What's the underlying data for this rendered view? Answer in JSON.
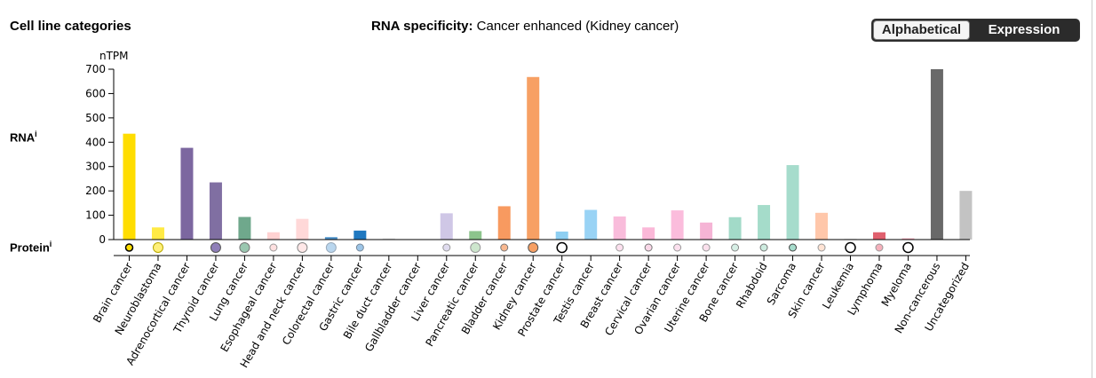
{
  "header": {
    "left_title": "Cell line categories",
    "center_title_bold": "RNA specificity:",
    "center_title_value": "Cancer enhanced (Kidney cancer)"
  },
  "sort_toggle": {
    "alphabetical_label": "Alphabetical",
    "expression_label": "Expression",
    "selected": "Alphabetical"
  },
  "rows": {
    "rna_label": "RNA",
    "rna_info": "i",
    "protein_label": "Protein",
    "protein_info": "i"
  },
  "chart_data": {
    "type": "bar",
    "ylabel": "nTPM",
    "ylim": [
      0,
      700
    ],
    "yticks": [
      0,
      100,
      200,
      300,
      400,
      500,
      600,
      700
    ],
    "categories": [
      "Brain cancer",
      "Neuroblastoma",
      "Adrenocortical cancer",
      "Thyroid cancer",
      "Lung cancer",
      "Esophageal cancer",
      "Head and neck cancer",
      "Colorectal cancer",
      "Gastric cancer",
      "Bile duct cancer",
      "Gallbladder cancer",
      "Liver cancer",
      "Pancreatic cancer",
      "Bladder cancer",
      "Kidney cancer",
      "Prostate cancer",
      "Testis cancer",
      "Breast cancer",
      "Cervical cancer",
      "Ovarian cancer",
      "Uterine cancer",
      "Bone cancer",
      "Rhabdoid",
      "Sarcoma",
      "Skin cancer",
      "Leukemia",
      "Lymphoma",
      "Myeloma",
      "Non-cancerous",
      "Uncategorized"
    ],
    "values": [
      435,
      50,
      377,
      235,
      93,
      30,
      85,
      10,
      37,
      5,
      0,
      108,
      35,
      137,
      668,
      33,
      122,
      95,
      50,
      120,
      70,
      92,
      142,
      306,
      110,
      3,
      30,
      5,
      700,
      200
    ],
    "colors": [
      "#FFDD00",
      "#FFEA44",
      "#7C67A0",
      "#806FA2",
      "#6FA88C",
      "#FFD2D2",
      "#FFD8D8",
      "#4A90C8",
      "#1F78C0",
      "#E5E5E5",
      "#FFFFFF",
      "#CFC7E6",
      "#8CC48C",
      "#F89A60",
      "#F7A064",
      "#8ECFF2",
      "#99D3F5",
      "#F9BCDB",
      "#FBB8D8",
      "#FBBCDC",
      "#F5B4D5",
      "#A2DAC8",
      "#A5DCCA",
      "#A6DCCC",
      "#FFC7AA",
      "#D9D9D9",
      "#E0606E",
      "#F2A0B0",
      "#696969",
      "#C3C3C3"
    ],
    "protein": [
      {
        "size": "small",
        "fill": "#FFDD00",
        "stroke": "#000"
      },
      {
        "size": "large",
        "fill": "#FFF07A",
        "stroke": "#B8A800"
      },
      null,
      {
        "size": "large",
        "fill": "#8F7FB8",
        "stroke": "#555"
      },
      {
        "size": "large",
        "fill": "#9AC7B0",
        "stroke": "#777"
      },
      {
        "size": "small",
        "fill": "#FFE0E0",
        "stroke": "#999"
      },
      {
        "size": "large",
        "fill": "#FFE8E8",
        "stroke": "#888"
      },
      {
        "size": "large",
        "fill": "#B9D6EE",
        "stroke": "#9AB"
      },
      {
        "size": "small",
        "fill": "#9CC4E6",
        "stroke": "#789"
      },
      null,
      null,
      {
        "size": "small",
        "fill": "#E0DCEF",
        "stroke": "#999"
      },
      {
        "size": "large",
        "fill": "#CDE6CD",
        "stroke": "#999"
      },
      {
        "size": "small",
        "fill": "#F8B890",
        "stroke": "#777"
      },
      {
        "size": "large",
        "fill": "#F7A064",
        "stroke": "#555"
      },
      {
        "size": "large",
        "fill": "#FFFFFF",
        "stroke": "#000"
      },
      null,
      {
        "size": "small",
        "fill": "#FCE0EE",
        "stroke": "#999"
      },
      {
        "size": "small",
        "fill": "#FAD8E8",
        "stroke": "#777"
      },
      {
        "size": "small",
        "fill": "#FCE0EE",
        "stroke": "#999"
      },
      {
        "size": "small",
        "fill": "#FAE0EC",
        "stroke": "#999"
      },
      {
        "size": "small",
        "fill": "#D6EEE5",
        "stroke": "#888"
      },
      {
        "size": "small",
        "fill": "#CDEBDF",
        "stroke": "#777"
      },
      {
        "size": "small",
        "fill": "#A6DCCC",
        "stroke": "#444"
      },
      {
        "size": "small",
        "fill": "#FFE3D4",
        "stroke": "#999"
      },
      {
        "size": "large",
        "fill": "#FFFFFF",
        "stroke": "#000"
      },
      {
        "size": "small",
        "fill": "#F5B0BB",
        "stroke": "#999"
      },
      {
        "size": "large",
        "fill": "#FFFFFF",
        "stroke": "#000"
      },
      null,
      null
    ]
  }
}
